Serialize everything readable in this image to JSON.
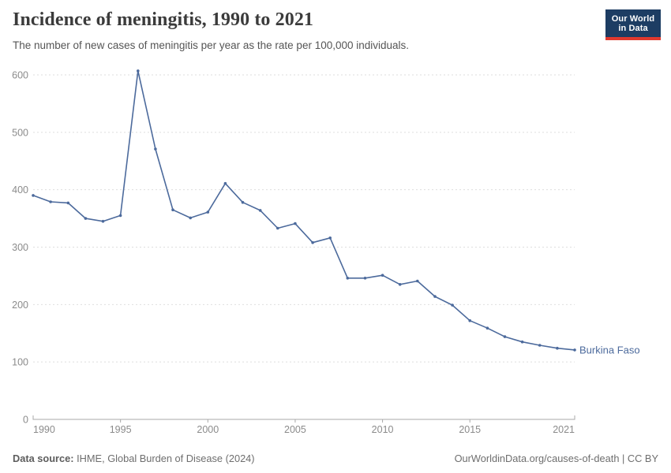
{
  "header": {
    "title": "Incidence of meningitis, 1990 to 2021",
    "subtitle": "The number of new cases of meningitis per year as the rate per 100,000 individuals."
  },
  "logo": {
    "line1": "Our World",
    "line2": "in Data"
  },
  "colors": {
    "line": "#4C6A9C",
    "entity_label": "#4C6A9C",
    "grid": "#DEDEDE",
    "axis": "#A8A8A8",
    "tick_text": "#8B8B8B",
    "logo_bg": "#1d3d63",
    "logo_accent": "#e0392e"
  },
  "chart_data": {
    "type": "line",
    "title": "Incidence of meningitis, 1990 to 2021",
    "xlabel": "",
    "ylabel": "",
    "grid": true,
    "legend_position": "end-of-line",
    "ylim": [
      0,
      600
    ],
    "yticks": [
      0,
      100,
      200,
      300,
      400,
      500,
      600
    ],
    "xticks": [
      1990,
      1995,
      2000,
      2005,
      2010,
      2015,
      2021
    ],
    "x": [
      1990,
      1991,
      1992,
      1993,
      1994,
      1995,
      1996,
      1997,
      1998,
      1999,
      2000,
      2001,
      2002,
      2003,
      2004,
      2005,
      2006,
      2007,
      2008,
      2009,
      2010,
      2011,
      2012,
      2013,
      2014,
      2015,
      2016,
      2017,
      2018,
      2019,
      2020,
      2021
    ],
    "series": [
      {
        "name": "Burkina Faso",
        "values": [
          390,
          379,
          377,
          350,
          345,
          355,
          607,
          471,
          365,
          351,
          361,
          411,
          378,
          364,
          333,
          341,
          308,
          316,
          246,
          246,
          251,
          235,
          241,
          214,
          199,
          172,
          159,
          144,
          135,
          129,
          124,
          121
        ]
      }
    ]
  },
  "footer": {
    "source_label": "Data source:",
    "source_text": " IHME, Global Burden of Disease (2024)",
    "credit": "OurWorldinData.org/causes-of-death | CC BY"
  }
}
